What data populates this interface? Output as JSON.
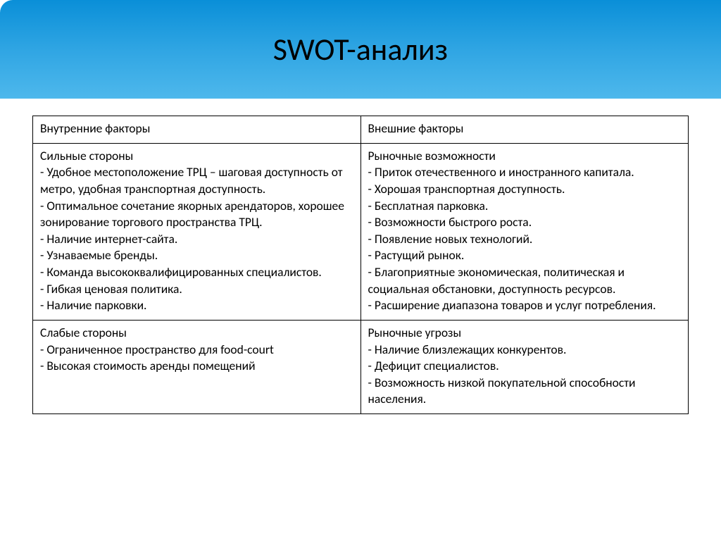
{
  "slide": {
    "title": "SWOT-анализ",
    "header_gradient_top": "#0a8fd8",
    "header_gradient_mid": "#2fa5e3",
    "header_gradient_bottom": "#4eb8ec",
    "title_fontsize": 44,
    "body_fontsize": 17.5,
    "border_color": "#000000",
    "background_color": "#ffffff"
  },
  "table": {
    "type": "table",
    "columns": [
      "Внутренние факторы",
      "Внешние факторы"
    ],
    "rows": [
      {
        "left": {
          "heading": "Сильные стороны",
          "items": [
            "- Удобное местоположение ТРЦ – шаговая доступность от метро, удобная транспортная доступность.",
            "- Оптимальное сочетание якорных арендаторов, хорошее зонирование торгового пространства ТРЦ.",
            "- Наличие интернет-сайта.",
            "- Узнаваемые бренды.",
            "- Команда высококвалифицированных специалистов.",
            "- Гибкая ценовая политика.",
            "- Наличие парковки."
          ]
        },
        "right": {
          "heading": "Рыночные возможности",
          "items": [
            "- Приток отечественного и иностранного капитала.",
            "- Хорошая транспортная доступность.",
            "- Бесплатная парковка.",
            "- Возможности быстрого роста.",
            "- Появление новых технологий.",
            "- Растущий рынок.",
            "- Благоприятные экономическая, политическая и социальная обстановки, доступность ресурсов.",
            "- Расширение диапазона товаров и услуг потребления."
          ]
        }
      },
      {
        "left": {
          "heading": "Слабые стороны",
          "items": [
            "- Ограниченное пространство для food-court",
            "- Высокая стоимость аренды помещений"
          ]
        },
        "right": {
          "heading": "Рыночные угрозы",
          "items": [
            "- Наличие близлежащих конкурентов.",
            "- Дефицит специалистов.",
            "- Возможность низкой покупательной способности населения."
          ]
        }
      }
    ]
  }
}
